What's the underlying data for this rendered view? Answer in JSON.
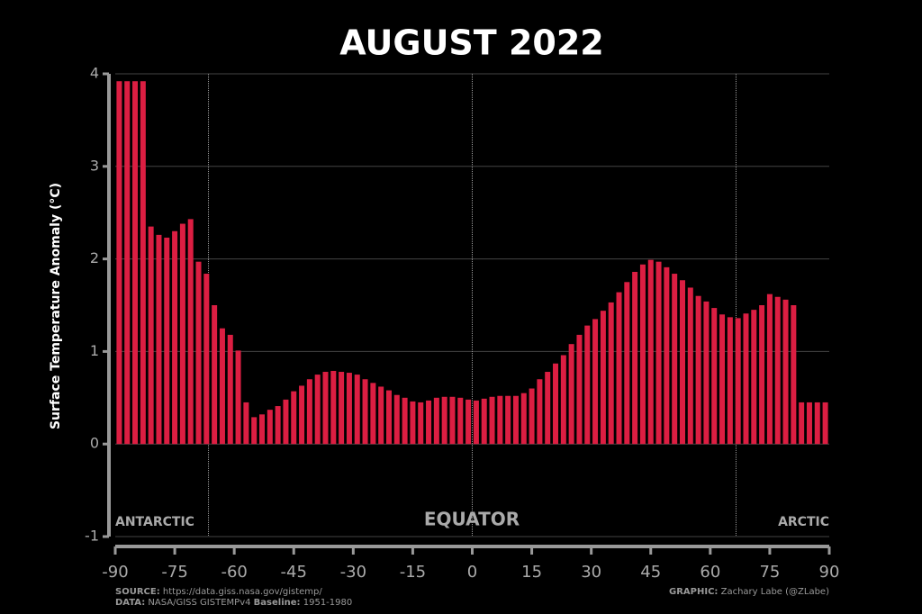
{
  "chart_data": {
    "type": "bar",
    "title": "AUGUST 2022",
    "ylabel": "Surface Temperature Anomaly (°C)",
    "x": [
      -89,
      -87,
      -85,
      -83,
      -81,
      -79,
      -77,
      -75,
      -73,
      -71,
      -69,
      -67,
      -65,
      -63,
      -61,
      -59,
      -57,
      -55,
      -53,
      -51,
      -49,
      -47,
      -45,
      -43,
      -41,
      -39,
      -37,
      -35,
      -33,
      -31,
      -29,
      -27,
      -25,
      -23,
      -21,
      -19,
      -17,
      -15,
      -13,
      -11,
      -9,
      -7,
      -5,
      -3,
      -1,
      1,
      3,
      5,
      7,
      9,
      11,
      13,
      15,
      17,
      19,
      21,
      23,
      25,
      27,
      29,
      31,
      33,
      35,
      37,
      39,
      41,
      43,
      45,
      47,
      49,
      51,
      53,
      55,
      57,
      59,
      61,
      63,
      65,
      67,
      69,
      71,
      73,
      75,
      77,
      79,
      81,
      83,
      85,
      87,
      89
    ],
    "values": [
      3.92,
      3.92,
      3.92,
      3.92,
      2.35,
      2.26,
      2.23,
      2.3,
      2.38,
      2.43,
      1.97,
      1.84,
      1.5,
      1.25,
      1.18,
      1.01,
      0.45,
      0.29,
      0.32,
      0.37,
      0.41,
      0.48,
      0.57,
      0.63,
      0.7,
      0.75,
      0.78,
      0.79,
      0.78,
      0.77,
      0.75,
      0.7,
      0.66,
      0.62,
      0.58,
      0.53,
      0.5,
      0.46,
      0.45,
      0.47,
      0.5,
      0.51,
      0.51,
      0.5,
      0.48,
      0.47,
      0.49,
      0.51,
      0.52,
      0.52,
      0.52,
      0.55,
      0.6,
      0.7,
      0.78,
      0.87,
      0.96,
      1.08,
      1.18,
      1.28,
      1.35,
      1.44,
      1.53,
      1.64,
      1.75,
      1.86,
      1.94,
      1.99,
      1.97,
      1.91,
      1.84,
      1.77,
      1.69,
      1.6,
      1.54,
      1.47,
      1.4,
      1.37,
      1.36,
      1.41,
      1.45,
      1.5,
      1.62,
      1.59,
      1.56,
      1.5,
      0.45,
      0.45,
      0.45,
      0.45
    ],
    "color": "#dc1e42",
    "xlim": [
      -90,
      90
    ],
    "xticks": [
      -90,
      -75,
      -60,
      -45,
      -30,
      -15,
      0,
      15,
      30,
      45,
      60,
      75,
      90
    ],
    "ylim": [
      -1,
      4
    ],
    "yticks": [
      -1,
      0,
      1,
      2,
      3,
      4
    ],
    "grid": true,
    "reference_lines": [
      -66.5,
      0,
      66.5
    ],
    "annotations": {
      "antarctic": "ANTARCTIC",
      "equator": "EQUATOR",
      "arctic": "ARCTIC"
    },
    "source_label": "SOURCE:",
    "source": "https://data.giss.nasa.gov/gistemp/",
    "data_label": "DATA:",
    "data": "NASA/GISS GISTEMPv4",
    "baseline_label": "Baseline:",
    "baseline": "1951-1980",
    "graphic_label": "GRAPHIC:",
    "graphic": "Zachary Labe (@ZLabe)"
  }
}
